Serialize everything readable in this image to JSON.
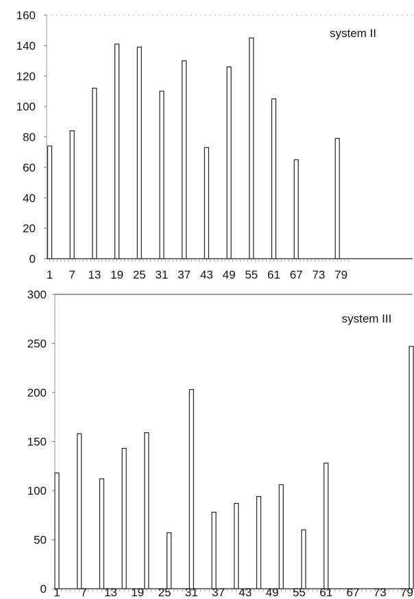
{
  "chart_data": [
    {
      "type": "bar",
      "annotation": "system II",
      "title": "",
      "xlabel": "",
      "ylabel": "",
      "x_range": [
        1,
        81
      ],
      "ylim": [
        0,
        160
      ],
      "y_ticks": [
        0,
        20,
        40,
        60,
        80,
        100,
        120,
        140,
        160
      ],
      "x_tick_labels": [
        1,
        7,
        13,
        19,
        25,
        31,
        37,
        43,
        49,
        55,
        61,
        67,
        73,
        79
      ],
      "grid": false,
      "points": [
        {
          "x": 1,
          "y": 74
        },
        {
          "x": 7,
          "y": 84
        },
        {
          "x": 13,
          "y": 112
        },
        {
          "x": 19,
          "y": 141
        },
        {
          "x": 25,
          "y": 139
        },
        {
          "x": 31,
          "y": 110
        },
        {
          "x": 37,
          "y": 130
        },
        {
          "x": 43,
          "y": 73
        },
        {
          "x": 49,
          "y": 126
        },
        {
          "x": 55,
          "y": 145
        },
        {
          "x": 61,
          "y": 105
        },
        {
          "x": 67,
          "y": 65
        },
        {
          "x": 78,
          "y": 79
        }
      ]
    },
    {
      "type": "bar",
      "annotation": "system III",
      "title": "",
      "xlabel": "",
      "ylabel": "",
      "x_range": [
        1,
        80
      ],
      "ylim": [
        0,
        300
      ],
      "y_ticks": [
        0,
        50,
        100,
        150,
        200,
        250,
        300
      ],
      "x_tick_labels": [
        1,
        7,
        13,
        19,
        25,
        31,
        37,
        43,
        49,
        55,
        61,
        67,
        73,
        79
      ],
      "grid": false,
      "points": [
        {
          "x": 1,
          "y": 118
        },
        {
          "x": 6,
          "y": 158
        },
        {
          "x": 11,
          "y": 112
        },
        {
          "x": 16,
          "y": 143
        },
        {
          "x": 21,
          "y": 159
        },
        {
          "x": 26,
          "y": 57
        },
        {
          "x": 31,
          "y": 203
        },
        {
          "x": 36,
          "y": 78
        },
        {
          "x": 41,
          "y": 87
        },
        {
          "x": 46,
          "y": 94
        },
        {
          "x": 51,
          "y": 106
        },
        {
          "x": 56,
          "y": 60
        },
        {
          "x": 61,
          "y": 128
        },
        {
          "x": 80,
          "y": 247
        }
      ]
    }
  ]
}
